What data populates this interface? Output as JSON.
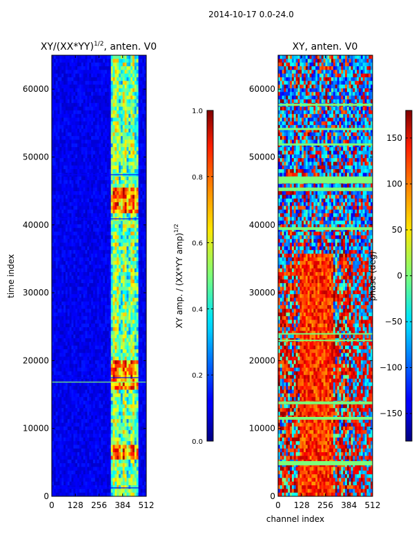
{
  "suptitle": "2014-10-17 0.0-24.0",
  "chart_data": [
    {
      "type": "heatmap",
      "title_base": "XY/(XX*YY)",
      "title_exp": "1/2",
      "title_suffix": ", anten. V0",
      "xlabel": "",
      "ylabel": "time index",
      "xlim": [
        0,
        512
      ],
      "ylim": [
        0,
        65000
      ],
      "xticks": [
        "0",
        "128",
        "256",
        "384",
        "512"
      ],
      "xtick_values": [
        0,
        128,
        256,
        384,
        512
      ],
      "yticks": [
        "0",
        "10000",
        "20000",
        "30000",
        "40000",
        "50000",
        "60000"
      ],
      "ytick_values": [
        0,
        10000,
        20000,
        30000,
        40000,
        50000,
        60000
      ],
      "colormap": "jet",
      "colorbar": {
        "label_base": "XY amp. / (XX*YY amp)",
        "label_exp": "1/2",
        "range": [
          0.0,
          1.0
        ],
        "ticks": [
          "0.0",
          "0.2",
          "0.4",
          "0.6",
          "0.8",
          "1.0"
        ],
        "tick_values": [
          0.0,
          0.2,
          0.4,
          0.6,
          0.8,
          1.0
        ]
      }
    },
    {
      "type": "heatmap",
      "title": "XY, anten. V0",
      "xlabel": "channel index",
      "ylabel": "",
      "xlim": [
        0,
        512
      ],
      "ylim": [
        0,
        65000
      ],
      "xticks": [
        "0",
        "128",
        "256",
        "384",
        "512"
      ],
      "xtick_values": [
        0,
        128,
        256,
        384,
        512
      ],
      "yticks": [
        "0",
        "10000",
        "20000",
        "30000",
        "40000",
        "50000",
        "60000"
      ],
      "ytick_values": [
        0,
        10000,
        20000,
        30000,
        40000,
        50000,
        60000
      ],
      "colormap": "jet",
      "colorbar": {
        "label": "phase (deg)",
        "range": [
          -180,
          180
        ],
        "ticks": [
          "−150",
          "−100",
          "−50",
          "0",
          "50",
          "100",
          "150"
        ],
        "tick_values": [
          -150,
          -100,
          -50,
          0,
          50,
          100,
          150
        ]
      }
    }
  ]
}
